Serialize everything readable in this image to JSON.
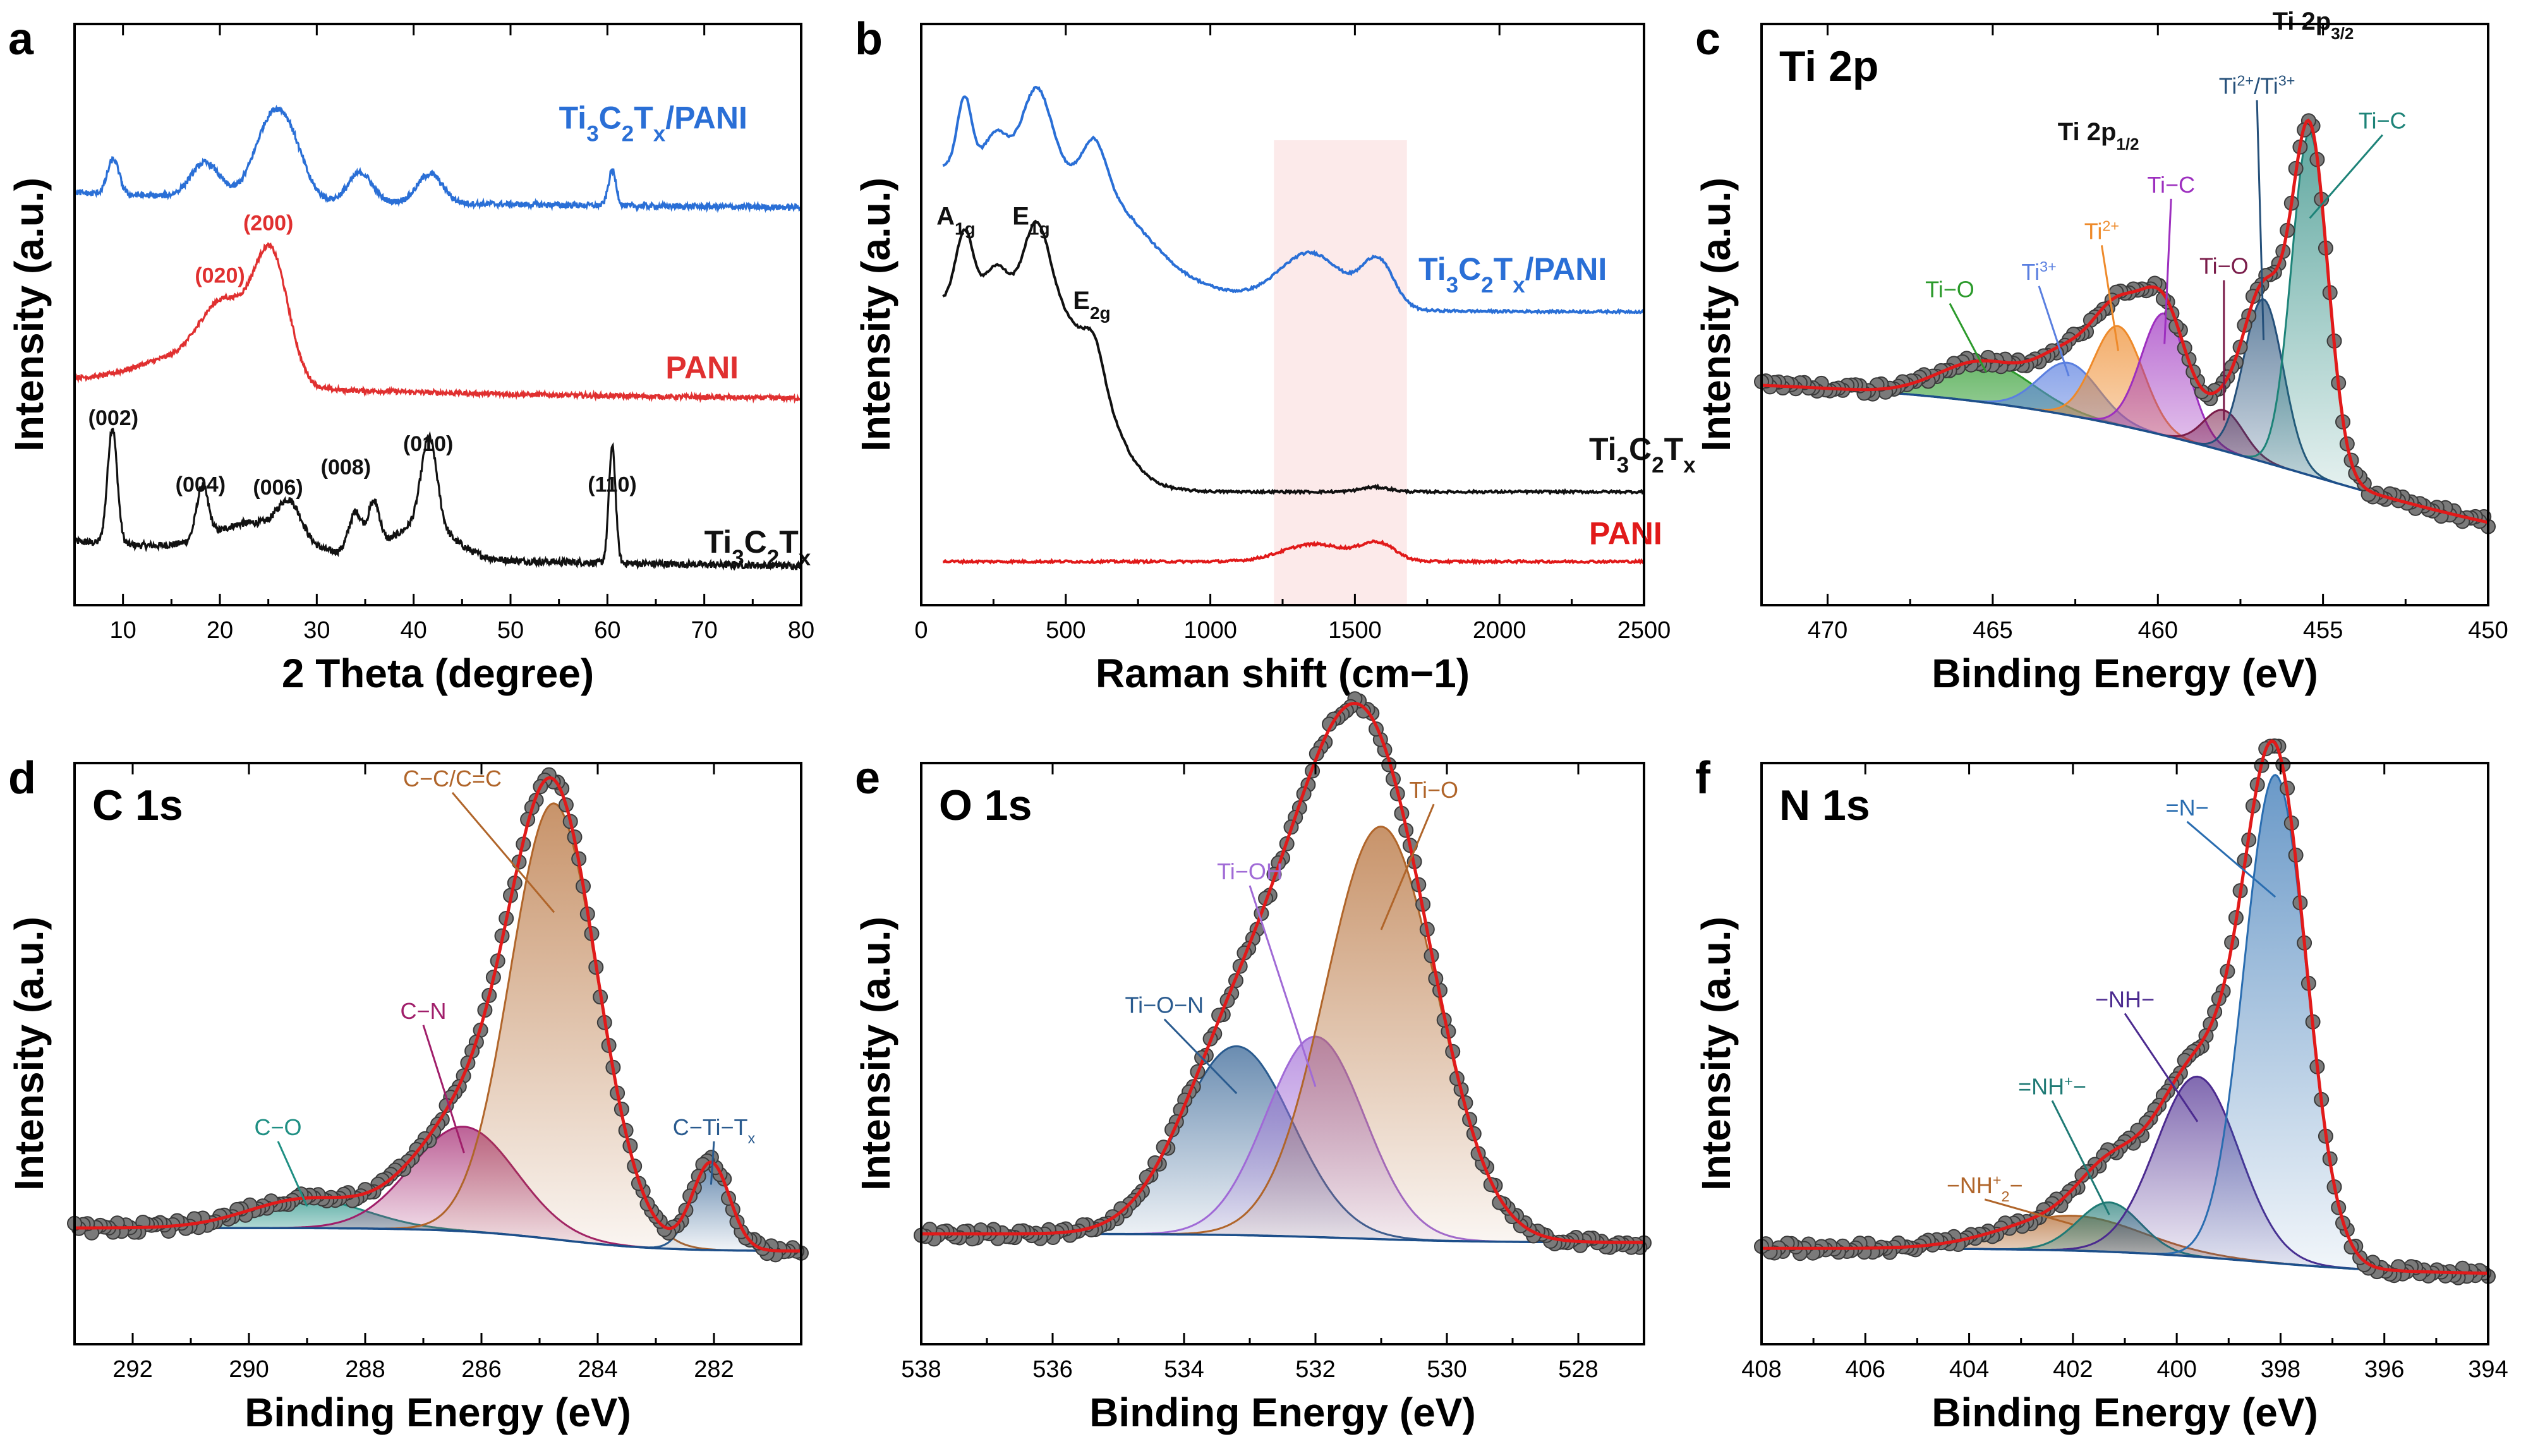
{
  "chart_data": [
    {
      "id": "a",
      "type": "line",
      "panel_letter": "a",
      "xlabel": "2 Theta (degree)",
      "ylabel": "Intensity (a.u.)",
      "xlim": [
        5,
        80
      ],
      "ylim": [
        0,
        1
      ],
      "xdir": "normal",
      "xticks": [
        "10",
        "20",
        "30",
        "40",
        "50",
        "60",
        "70",
        "80"
      ],
      "series": [
        {
          "name": "Ti3C2Tx",
          "color": "#111111",
          "offset": 0.06,
          "label": {
            "main": "Ti",
            "parts": [
              [
                "3",
                1
              ],
              [
                "C",
                0
              ],
              [
                "2",
                1
              ],
              [
                "T",
                0
              ],
              [
                "x",
                1
              ]
            ]
          },
          "label_pos": [
            70,
            0.09
          ],
          "baseline": 0.05,
          "noise": 0.012,
          "peaks": [
            [
              8.9,
              0.2,
              0.5
            ],
            [
              18.2,
              0.09,
              0.6
            ],
            [
              27.2,
              0.06,
              1.2
            ],
            [
              34.0,
              0.07,
              0.7
            ],
            [
              35.9,
              0.08,
              0.6
            ],
            [
              41.6,
              0.15,
              0.8
            ],
            [
              60.5,
              0.2,
              0.35
            ],
            [
              23.5,
              0.05,
              4
            ],
            [
              41,
              0.06,
              3
            ]
          ]
        },
        {
          "name": "PANI",
          "color": "#e03030",
          "offset": 0.35,
          "label": {
            "main": "PANI",
            "parts": []
          },
          "label_pos": [
            66,
            0.39
          ],
          "baseline": 0.04,
          "noise": 0.008,
          "peaks": [
            [
              20.5,
              0.13,
              2.5
            ],
            [
              25.3,
              0.22,
              1.8
            ],
            [
              15,
              0.04,
              4
            ]
          ]
        },
        {
          "name": "Ti3C2Tx/PANI",
          "color": "#2a6fd6",
          "offset": 0.68,
          "label": {
            "main": "Ti",
            "parts": [
              [
                "3",
                1
              ],
              [
                "C",
                0
              ],
              [
                "2",
                1
              ],
              [
                "T",
                0
              ],
              [
                "x",
                1
              ],
              [
                "/PANI",
                0
              ]
            ]
          },
          "label_pos": [
            55,
            0.82
          ],
          "baseline": 0.03,
          "noise": 0.01,
          "peaks": [
            [
              9.0,
              0.06,
              0.6
            ],
            [
              18.5,
              0.06,
              1.5
            ],
            [
              25.3,
              0.13,
              1.8
            ],
            [
              27.5,
              0.06,
              1.5
            ],
            [
              34.5,
              0.05,
              1.2
            ],
            [
              41.7,
              0.05,
              1.3
            ],
            [
              60.5,
              0.06,
              0.4
            ]
          ]
        }
      ],
      "annotations": [
        {
          "text": "(002)",
          "x": 9,
          "y": 0.31,
          "color": "#111111"
        },
        {
          "text": "(004)",
          "x": 18,
          "y": 0.195,
          "color": "#111111"
        },
        {
          "text": "(006)",
          "x": 26,
          "y": 0.19,
          "color": "#111111"
        },
        {
          "text": "(008)",
          "x": 33,
          "y": 0.225,
          "color": "#111111"
        },
        {
          "text": "(010)",
          "x": 41.5,
          "y": 0.265,
          "color": "#111111"
        },
        {
          "text": "(110)",
          "x": 60.5,
          "y": 0.195,
          "color": "#111111"
        },
        {
          "text": "(020)",
          "x": 20,
          "y": 0.555,
          "color": "#e03030"
        },
        {
          "text": "(200)",
          "x": 25,
          "y": 0.645,
          "color": "#e03030"
        }
      ]
    },
    {
      "id": "b",
      "type": "line",
      "panel_letter": "b",
      "xlabel": "Raman shift (cm−1)",
      "ylabel": "Intensity (a.u.)",
      "xlim": [
        0,
        2500
      ],
      "ylim": [
        0,
        1
      ],
      "xdir": "normal",
      "xticks": [
        "0",
        "500",
        "1000",
        "1500",
        "2000",
        "2500"
      ],
      "highlight_band": [
        1220,
        1680
      ],
      "series": [
        {
          "name": "PANI",
          "color": "#e11a1a",
          "label": {
            "main": "PANI",
            "parts": []
          },
          "label_pos": [
            2310,
            0.105
          ]
        },
        {
          "name": "Ti3C2Tx",
          "color": "#111111",
          "label": {
            "main": "Ti",
            "parts": [
              [
                "3",
                1
              ],
              [
                "C",
                0
              ],
              [
                "2",
                1
              ],
              [
                "T",
                0
              ],
              [
                "x",
                1
              ]
            ]
          },
          "label_pos": [
            2310,
            0.25
          ]
        },
        {
          "name": "Ti3C2Tx/PANI",
          "color": "#2a6fd6",
          "label": {
            "main": "Ti",
            "parts": [
              [
                "3",
                1
              ],
              [
                "C",
                0
              ],
              [
                "2",
                1
              ],
              [
                "T",
                0
              ],
              [
                "x",
                1
              ],
              [
                "/PANI",
                0
              ]
            ]
          },
          "label_pos": [
            1720,
            0.56
          ]
        }
      ],
      "annotations": [
        {
          "main": "A",
          "sub": "1g",
          "x": 120,
          "y": 0.655
        },
        {
          "main": "E",
          "sub": "1g",
          "x": 380,
          "y": 0.655
        },
        {
          "main": "E",
          "sub": "2g",
          "x": 590,
          "y": 0.51
        }
      ]
    },
    {
      "id": "c",
      "type": "line",
      "panel_letter": "c",
      "title": "Ti 2p",
      "xlabel": "Binding Energy (eV)",
      "ylabel": "Intensity (a.u.)",
      "xlim": [
        472,
        450
      ],
      "ylim": [
        0,
        1
      ],
      "xdir": "reverse",
      "xticks": [
        "470",
        "465",
        "460",
        "455",
        "450"
      ],
      "background": {
        "type": "linear_shirley",
        "left": 0.39,
        "right": 0.06,
        "center": 455.5,
        "width": 5
      },
      "components": [
        {
          "name": "Ti−O",
          "center": 465.2,
          "amp": 0.07,
          "sigma": 1.4,
          "color": "#2b9a2b"
        },
        {
          "name": "Ti3+",
          "center": 462.7,
          "amp": 0.09,
          "sigma": 0.9,
          "color": "#5a7fe0"
        },
        {
          "name": "Ti2+",
          "center": 461.2,
          "amp": 0.17,
          "sigma": 0.75,
          "color": "#ee8a2a"
        },
        {
          "name": "Ti−C",
          "center": 459.8,
          "amp": 0.21,
          "sigma": 0.7,
          "color": "#9d2fbf"
        },
        {
          "name": "Ti−O",
          "center": 458.0,
          "amp": 0.07,
          "sigma": 0.6,
          "color": "#7a1c4a"
        },
        {
          "name": "Ti2+/Ti3+",
          "center": 456.8,
          "amp": 0.28,
          "sigma": 0.6,
          "color": "#25507a"
        },
        {
          "name": "Ti−C",
          "center": 455.4,
          "amp": 0.59,
          "sigma": 0.55,
          "color": "#1d8378"
        }
      ],
      "annotations": [
        {
          "main": "Ti−O",
          "sub": "",
          "sup": "",
          "x": 466.3,
          "y": 0.53,
          "color": "#2b9a2b"
        },
        {
          "main": "Ti",
          "sup": "3+",
          "sub": "",
          "x": 463.6,
          "y": 0.56,
          "color": "#5a7fe0"
        },
        {
          "main": "Ti",
          "sup": "2+",
          "sub": "",
          "x": 461.7,
          "y": 0.63,
          "color": "#ee8a2a"
        },
        {
          "main": "Ti−C",
          "sub": "",
          "sup": "",
          "x": 459.6,
          "y": 0.71,
          "color": "#9d2fbf"
        },
        {
          "main": "Ti−O",
          "sub": "",
          "sup": "",
          "x": 458.0,
          "y": 0.57,
          "color": "#7a1c4a"
        },
        {
          "main": "Ti",
          "sup": "2+",
          "mid": "/Ti",
          "sup2": "3+",
          "sub": "",
          "x": 457.0,
          "y": 0.88,
          "color": "#25507a"
        },
        {
          "main": "Ti−C",
          "sub": "",
          "sup": "",
          "x": 453.2,
          "y": 0.82,
          "color": "#1d8378"
        },
        {
          "main": "Ti 2p",
          "sub": "1/2",
          "sup": "",
          "x": 461.8,
          "y": 0.8,
          "color": "#111111",
          "bold": true
        },
        {
          "main": "Ti 2p",
          "sub": "3/2",
          "sup": "",
          "x": 455.3,
          "y": 0.99,
          "color": "#111111",
          "bold": true
        }
      ]
    },
    {
      "id": "d",
      "type": "line",
      "panel_letter": "d",
      "title": "C 1s",
      "xlabel": "Binding Energy (eV)",
      "ylabel": "Intensity (a.u.)",
      "xlim": [
        293,
        280.5
      ],
      "ylim": [
        0,
        1
      ],
      "xdir": "reverse",
      "xticks": [
        "292",
        "290",
        "288",
        "286",
        "284",
        "282"
      ],
      "background": {
        "type": "linear_shirley",
        "left": 0.2,
        "right": 0.16,
        "center": 284.7,
        "width": 0.9
      },
      "components": [
        {
          "name": "C−O",
          "center": 289.0,
          "amp": 0.05,
          "sigma": 1.0,
          "color": "#1f8f83"
        },
        {
          "name": "C−N",
          "center": 286.3,
          "amp": 0.18,
          "sigma": 0.9,
          "color": "#a01e6a"
        },
        {
          "name": "C−C/C=C",
          "center": 284.75,
          "amp": 0.75,
          "sigma": 0.75,
          "color": "#b0652a"
        },
        {
          "name": "C−Ti−Tx",
          "center": 282.05,
          "amp": 0.15,
          "sigma": 0.32,
          "color": "#2a5b8f"
        }
      ],
      "annotations": [
        {
          "main": "C−O",
          "sub": "",
          "sup": "",
          "x": 289.5,
          "y": 0.36,
          "color": "#1f8f83"
        },
        {
          "main": "C−N",
          "sub": "",
          "sup": "",
          "x": 287.0,
          "y": 0.56,
          "color": "#a01e6a"
        },
        {
          "main": "C−C/C=C",
          "sub": "",
          "sup": "",
          "x": 286.5,
          "y": 0.96,
          "color": "#b0652a"
        },
        {
          "main": "C−Ti−T",
          "sub": "x",
          "sup": "",
          "x": 282.0,
          "y": 0.36,
          "color": "#2a5b8f"
        }
      ]
    },
    {
      "id": "e",
      "type": "line",
      "panel_letter": "e",
      "title": "O 1s",
      "xlabel": "Binding Energy (eV)",
      "ylabel": "Intensity (a.u.)",
      "xlim": [
        538,
        527
      ],
      "ylim": [
        0,
        1
      ],
      "xdir": "reverse",
      "xticks": [
        "538",
        "536",
        "534",
        "532",
        "530",
        "528"
      ],
      "background": {
        "type": "linear_shirley",
        "left": 0.19,
        "right": 0.175,
        "center": 531.5,
        "width": 1.0
      },
      "components": [
        {
          "name": "Ti−O−N",
          "center": 533.2,
          "amp": 0.325,
          "sigma": 0.85,
          "color": "#2a5b8f"
        },
        {
          "name": "Ti−OH",
          "center": 532.0,
          "amp": 0.345,
          "sigma": 0.75,
          "color": "#a06ad6"
        },
        {
          "name": "Ti−O",
          "center": 531.0,
          "amp": 0.71,
          "sigma": 0.85,
          "color": "#b0652a"
        }
      ],
      "annotations": [
        {
          "main": "Ti−O−N",
          "sub": "",
          "sup": "",
          "x": 534.3,
          "y": 0.57,
          "color": "#2a5b8f"
        },
        {
          "main": "Ti−OH",
          "sub": "",
          "sup": "",
          "x": 533.0,
          "y": 0.8,
          "color": "#a06ad6"
        },
        {
          "main": "Ti−O",
          "sub": "",
          "sup": "",
          "x": 530.2,
          "y": 0.94,
          "color": "#b0652a"
        }
      ]
    },
    {
      "id": "f",
      "type": "line",
      "panel_letter": "f",
      "title": "N 1s",
      "xlabel": "Binding Energy (eV)",
      "ylabel": "Intensity (a.u.)",
      "xlim": [
        408,
        394
      ],
      "ylim": [
        0,
        1
      ],
      "xdir": "reverse",
      "xticks": [
        "408",
        "406",
        "404",
        "402",
        "400",
        "398",
        "396",
        "394"
      ],
      "background": {
        "type": "linear_shirley",
        "left": 0.165,
        "right": 0.12,
        "center": 398.5,
        "width": 1.5
      },
      "components": [
        {
          "name": "−NH2+−",
          "center": 402.0,
          "amp": 0.06,
          "sigma": 1.3,
          "color": "#b0652a"
        },
        {
          "name": "=NH+−",
          "center": 401.3,
          "amp": 0.085,
          "sigma": 0.6,
          "color": "#1f7a75"
        },
        {
          "name": "−NH−",
          "center": 399.6,
          "amp": 0.31,
          "sigma": 0.8,
          "color": "#4b2a8f"
        },
        {
          "name": "=N−",
          "center": 398.1,
          "amp": 0.84,
          "sigma": 0.6,
          "color": "#2a6db0"
        }
      ],
      "annotations": [
        {
          "main": "−NH",
          "sub": "2",
          "sup": "+",
          "tail": "−",
          "x": 403.7,
          "y": 0.26,
          "color": "#b0652a"
        },
        {
          "main": "=NH",
          "sub": "",
          "sup": "+",
          "tail": "−",
          "x": 402.4,
          "y": 0.43,
          "color": "#1f7a75"
        },
        {
          "main": "−NH−",
          "sub": "",
          "sup": "",
          "x": 401.0,
          "y": 0.58,
          "color": "#4b2a8f"
        },
        {
          "main": "=N−",
          "sub": "",
          "sup": "",
          "x": 399.8,
          "y": 0.91,
          "color": "#2a6db0"
        }
      ]
    }
  ],
  "colors": {
    "envelope": "#e11a1a",
    "raw_point": "#6e6e6e",
    "background": "#1d4f8a"
  }
}
